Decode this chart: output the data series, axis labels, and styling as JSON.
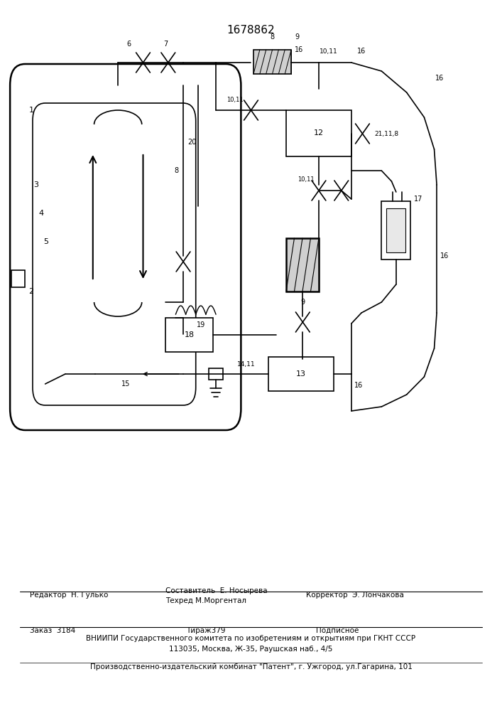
{
  "patent_number": "1678862",
  "footer_line1_left": "Редактор  Н. Гулько",
  "footer_line1_mid1": "Составитель  Е. Носырева",
  "footer_line1_mid2": "Техред М.Моргентал",
  "footer_line1_right": "Корректор  Э. Лончакова",
  "footer_line2_col1": "Заказ  3184",
  "footer_line2_col2": "Тираж379",
  "footer_line2_col3": "Подписное",
  "footer_line3": "ВНИИПИ Государственного комитета по изобретениям и открытиям при ГКНТ СССР",
  "footer_line4": "113035, Москва, Ж-35, Раушская наб., 4/5",
  "footer_line5": "Производственно-издательский комбинат \"Патент\", г. Ужгород, ул.Гагарина, 101"
}
